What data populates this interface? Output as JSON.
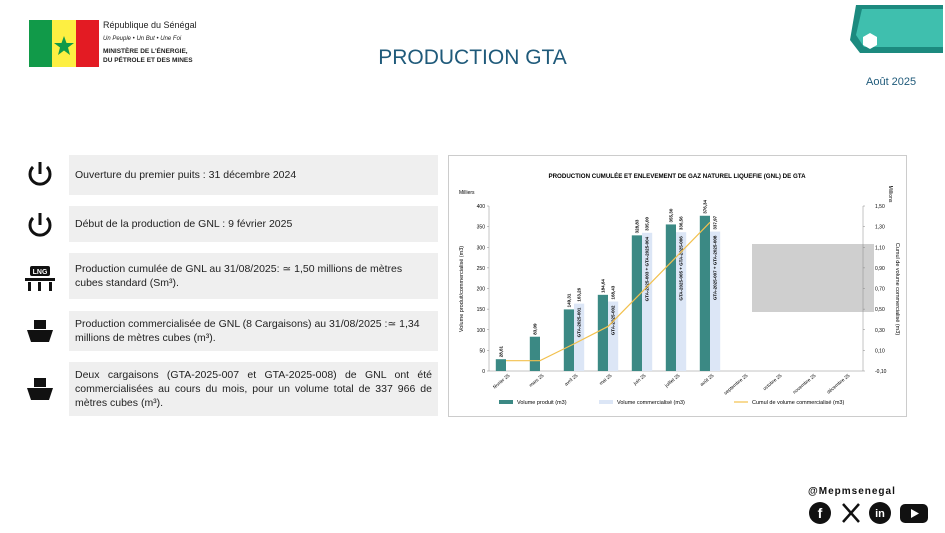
{
  "header": {
    "country": "République du Sénégal",
    "motto": "Un Peuple • Un But • Une Foi",
    "ministry_1": "MINISTÈRE DE L'ÉNERGIE,",
    "ministry_2": "DU PÉTROLE ET DES MINES",
    "title": "PRODUCTION GTA",
    "date": "Août 2025"
  },
  "items": [
    {
      "text": "Ouverture du premier puits : 31 décembre 2024"
    },
    {
      "text": "Début de la production de GNL : 9 février 2025"
    },
    {
      "text": "Production cumulée de GNL au 31/08/2025: ≃ 1,50 millions de mètres cubes standard (Sm³)."
    },
    {
      "text": "Production commercialisée de GNL (8 Cargaisons) au 31/08/2025 :≃ 1,34 millions de mètres cubes (m³)."
    },
    {
      "text": "Deux cargaisons (GTA-2025-007 et GTA-2025-008) de GNL ont été commercialisées au cours du mois, pour un volume total de 337 966 de mètres cubes (m³)."
    }
  ],
  "icons": {
    "lng": "LNG"
  },
  "footer": {
    "handle": "@Mepmsenegal"
  },
  "chart_data": {
    "type": "bar",
    "title": "PRODUCTION CUMULÉE ET ENLEVEMENT DE GAZ NATUREL LIQUEFIE (GNL) DE GTA",
    "y_unit": "Milliers",
    "y2_unit": "Millions",
    "ylabel": "Volume produit/commercialisé (m3)",
    "y2label": "Cumul de volume commercialisé (m3)",
    "categories": [
      "février 25",
      "mars 25",
      "avril 25",
      "mai 25",
      "juin 25",
      "juillet 25",
      "août 25",
      "septembre 25",
      "octobre 25",
      "novembre 25",
      "décembre 25"
    ],
    "series": [
      {
        "name": "Volume produit (m3)",
        "type": "bar",
        "color": "#3b8984",
        "values": [
          28.61,
          83.09,
          149.31,
          184.64,
          328.83,
          355.3,
          376.34,
          null,
          null,
          null,
          null
        ],
        "value_labels": [
          "28,61",
          "83,09",
          "149,31",
          "184,64",
          "328,83",
          "355,30",
          "376,34",
          null,
          null,
          null,
          null
        ]
      },
      {
        "name": "Volume commercialisé (m3)",
        "type": "bar",
        "color": "#dce6f6",
        "values": [
          null,
          null,
          163.26,
          168.43,
          335.0,
          336.56,
          337.97,
          null,
          null,
          null,
          null
        ],
        "value_labels": [
          null,
          null,
          "163,26",
          "168,43",
          "335,00",
          "336,56",
          "337,97",
          null,
          null,
          null,
          null
        ],
        "annotations": [
          null,
          null,
          "GTA-2025-001",
          "GTA-2025-002",
          "GTA-2025-003 + GTA-2025-004",
          "GTA-2025-005 + GTA-2025-006",
          "GTA-2025-007 + GTA-2025-008",
          null,
          null,
          null,
          null
        ]
      },
      {
        "name": "Cumul de volume commercialisé (m3)",
        "type": "line",
        "axis": "y2",
        "color": "#f2c14e",
        "values": [
          0,
          0,
          0.163,
          0.332,
          0.667,
          1.004,
          1.342,
          null,
          null,
          null,
          null
        ]
      }
    ],
    "ylim": [
      0,
      400
    ],
    "yticks": [
      0,
      50,
      100,
      150,
      200,
      250,
      300,
      350,
      400
    ],
    "y2lim": [
      -0.1,
      1.5
    ],
    "y2ticks": [
      {
        "value": -0.1,
        "label": "-0,10"
      },
      {
        "value": 0.1,
        "label": "0,10"
      },
      {
        "value": 0.3,
        "label": "0,30"
      },
      {
        "value": 0.5,
        "label": "0,50"
      },
      {
        "value": 0.7,
        "label": "0,70"
      },
      {
        "value": 0.9,
        "label": "0,90"
      },
      {
        "value": 1.1,
        "label": "1,10"
      },
      {
        "value": 1.3,
        "label": "1,30"
      },
      {
        "value": 1.5,
        "label": "1,50"
      }
    ]
  }
}
